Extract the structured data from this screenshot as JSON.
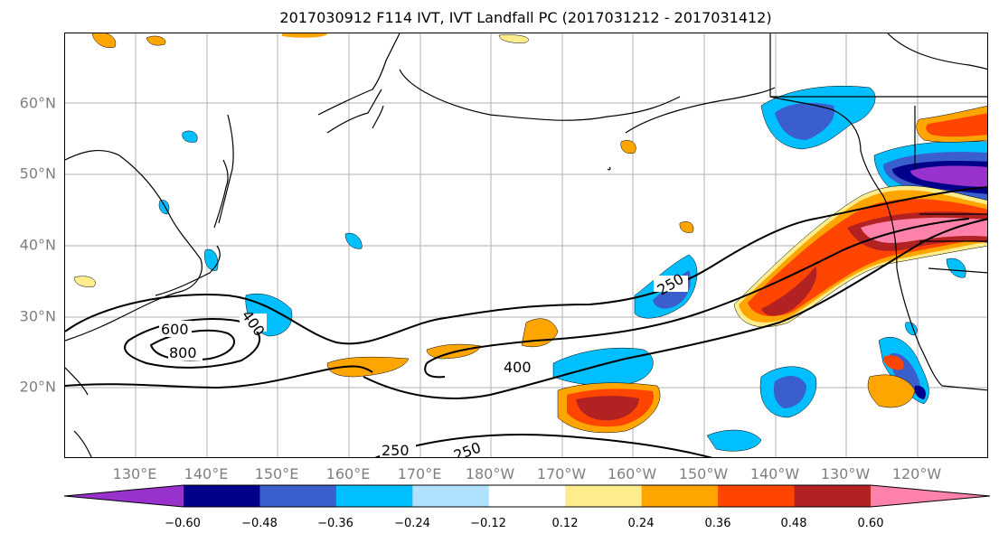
{
  "title": "2017030912 F114 IVT, IVT Landfall PC (2017031212 - 2017031412)",
  "lat_labels": [
    "60°N",
    "50°N",
    "40°N",
    "30°N",
    "20°N"
  ],
  "lon_labels": [
    "130°E",
    "140°E",
    "150°E",
    "160°E",
    "170°E",
    "180°W",
    "170°W",
    "160°W",
    "150°W",
    "140°W",
    "130°W",
    "120°W"
  ],
  "contour_labels": [
    "600",
    "800",
    "400",
    "250",
    "400",
    "250",
    "250"
  ],
  "colorbar": {
    "ticks": [
      "−0.60",
      "−0.48",
      "−0.36",
      "−0.24",
      "−0.12",
      "0.12",
      "0.24",
      "0.36",
      "0.48",
      "0.60"
    ],
    "colors": [
      "#9932cc",
      "#00008b",
      "#3a5fcd",
      "#00bfff",
      "#b0e2ff",
      "#ffffff",
      "#ffec8b",
      "#ffa500",
      "#ff4500",
      "#b22222",
      "#ff82ab"
    ]
  }
}
